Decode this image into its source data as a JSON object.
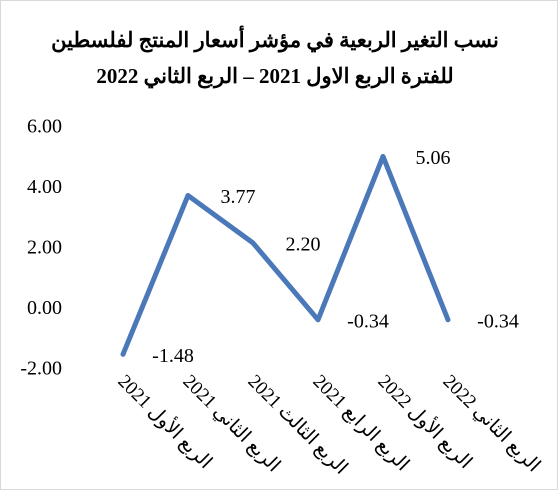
{
  "chart_data": {
    "type": "line",
    "title": "نسب التغير الربعية في مؤشر أسعار المنتج لفلسطين",
    "subtitle": "للفترة الربع الاول 2021 – الربع الثاني 2022",
    "categories": [
      "الربع الأول 2021",
      "الربع الثاني 2021",
      "الربع الثالث 2021",
      "الربع الرابع 2021",
      "الربع الأول 2022",
      "الربع الثاني 2022"
    ],
    "values": [
      -1.48,
      3.77,
      2.2,
      -0.34,
      5.06,
      -0.34
    ],
    "value_labels": [
      "-1.48",
      "3.77",
      "2.20",
      "-0.34",
      "5.06",
      "-0.34"
    ],
    "color": "#4a78b8",
    "ylim": [
      -2,
      6
    ],
    "yticks": [
      {
        "value": -2,
        "label": "-2.00"
      },
      {
        "value": 0,
        "label": "0.00"
      },
      {
        "value": 2,
        "label": "2.00"
      },
      {
        "value": 4,
        "label": "4.00"
      },
      {
        "value": 6,
        "label": "6.00"
      }
    ],
    "grid": false
  }
}
